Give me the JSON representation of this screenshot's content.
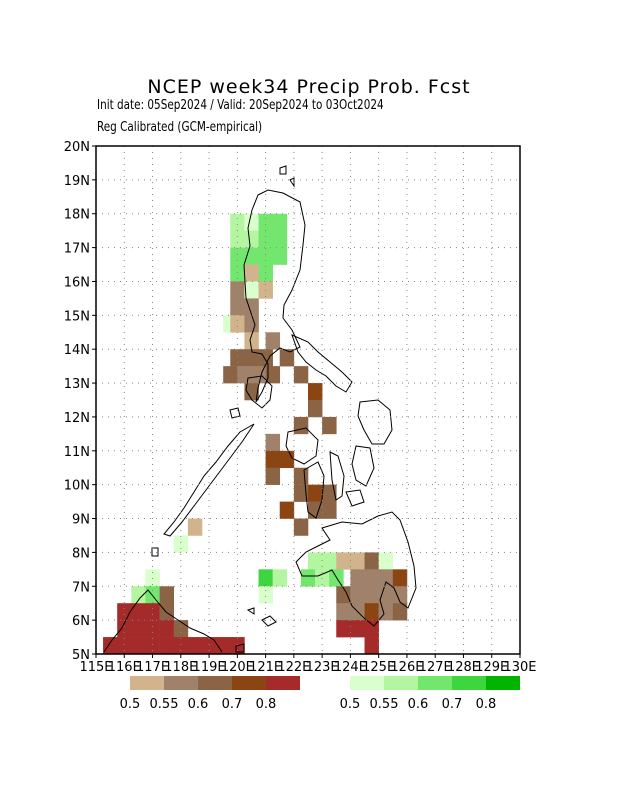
{
  "title": "NCEP week34 Precip Prob. Fcst",
  "subtitle1": "Init date: 05Sep2024 / Valid: 20Sep2024 to 03Oct2024",
  "subtitle2": "Reg Calibrated (GCM-empirical)",
  "axes": {
    "lon_ticks": [
      "115E",
      "116E",
      "117E",
      "118E",
      "119E",
      "120E",
      "121E",
      "122E",
      "123E",
      "124E",
      "125E",
      "126E",
      "127E",
      "128E",
      "129E",
      "130E"
    ],
    "lat_ticks": [
      "5N",
      "6N",
      "7N",
      "8N",
      "9N",
      "10N",
      "11N",
      "12N",
      "13N",
      "14N",
      "15N",
      "16N",
      "17N",
      "18N",
      "19N",
      "20N"
    ],
    "xlim": [
      115,
      130
    ],
    "ylim": [
      5,
      20
    ],
    "grid": true
  },
  "legend_dry": {
    "labels": [
      "0.5",
      "0.55",
      "0.6",
      "0.7",
      "0.8"
    ],
    "colors": [
      "#d2b48c",
      "#a0826a",
      "#8b6446",
      "#8b4513",
      "#a52a2a"
    ]
  },
  "legend_wet": {
    "labels": [
      "0.5",
      "0.55",
      "0.6",
      "0.7",
      "0.8"
    ],
    "colors": [
      "#d9ffcc",
      "#b3f5a0",
      "#73e66e",
      "#3ed63e",
      "#00b400"
    ]
  },
  "chart_data": {
    "type": "heatmap",
    "cell_size_deg": 0.5,
    "categories": {
      "d1": "dry 0.5",
      "d2": "dry 0.55",
      "d3": "dry 0.6",
      "d4": "dry 0.7",
      "d5": "dry 0.8",
      "w1": "wet 0.5",
      "w2": "wet 0.55",
      "w3": "wet 0.6",
      "w4": "wet 0.7",
      "w5": "wet 0.8"
    },
    "cells": [
      [
        120.0,
        17.75,
        "w2"
      ],
      [
        120.5,
        17.75,
        "w1"
      ],
      [
        121.0,
        17.75,
        "w3"
      ],
      [
        121.5,
        17.75,
        "w3"
      ],
      [
        120.0,
        17.25,
        "w2"
      ],
      [
        120.5,
        17.25,
        "w2"
      ],
      [
        121.0,
        17.25,
        "w3"
      ],
      [
        121.5,
        17.25,
        "w3"
      ],
      [
        120.0,
        16.75,
        "w3"
      ],
      [
        120.5,
        16.75,
        "w3"
      ],
      [
        121.0,
        16.75,
        "w3"
      ],
      [
        121.5,
        16.75,
        "w3"
      ],
      [
        120.0,
        16.25,
        "w3"
      ],
      [
        120.5,
        16.25,
        "d1"
      ],
      [
        121.0,
        16.25,
        "w3"
      ],
      [
        120.0,
        15.75,
        "d2"
      ],
      [
        120.5,
        15.75,
        "w1"
      ],
      [
        121.0,
        15.75,
        "d1"
      ],
      [
        120.0,
        15.25,
        "d2"
      ],
      [
        120.5,
        15.25,
        "d2"
      ],
      [
        119.75,
        14.75,
        "w1"
      ],
      [
        120.0,
        14.75,
        "d1"
      ],
      [
        120.5,
        14.75,
        "d2"
      ],
      [
        120.5,
        14.25,
        "d1"
      ],
      [
        121.25,
        14.25,
        "d2"
      ],
      [
        120.0,
        13.75,
        "d3"
      ],
      [
        120.5,
        13.75,
        "d3"
      ],
      [
        121.0,
        13.75,
        "d3"
      ],
      [
        121.75,
        13.75,
        "d3"
      ],
      [
        119.75,
        13.25,
        "d3"
      ],
      [
        120.25,
        13.25,
        "d2"
      ],
      [
        120.75,
        13.25,
        "d2"
      ],
      [
        121.25,
        13.25,
        "d3"
      ],
      [
        122.25,
        13.25,
        "d3"
      ],
      [
        120.5,
        12.75,
        "d3"
      ],
      [
        122.75,
        12.75,
        "d4"
      ],
      [
        122.75,
        12.25,
        "d3"
      ],
      [
        122.25,
        11.75,
        "d3"
      ],
      [
        123.25,
        11.75,
        "d3"
      ],
      [
        121.25,
        11.25,
        "d2"
      ],
      [
        121.25,
        10.75,
        "d4"
      ],
      [
        121.75,
        10.75,
        "d4"
      ],
      [
        121.25,
        10.25,
        "d3"
      ],
      [
        122.25,
        10.25,
        "d3"
      ],
      [
        122.25,
        9.75,
        "d3"
      ],
      [
        122.75,
        9.75,
        "d4"
      ],
      [
        123.25,
        9.75,
        "d3"
      ],
      [
        121.75,
        9.25,
        "d4"
      ],
      [
        122.75,
        9.25,
        "d3"
      ],
      [
        123.25,
        9.25,
        "d3"
      ],
      [
        122.25,
        8.75,
        "d3"
      ],
      [
        118.5,
        8.75,
        "d1"
      ],
      [
        118.0,
        8.25,
        "w1"
      ],
      [
        122.75,
        7.75,
        "w2"
      ],
      [
        123.25,
        7.75,
        "w2"
      ],
      [
        123.75,
        7.75,
        "d1"
      ],
      [
        124.25,
        7.75,
        "d1"
      ],
      [
        124.75,
        7.75,
        "d3"
      ],
      [
        125.25,
        7.75,
        "w1"
      ],
      [
        121.0,
        7.25,
        "w4"
      ],
      [
        121.5,
        7.25,
        "w2"
      ],
      [
        122.5,
        7.25,
        "w3"
      ],
      [
        123.0,
        7.25,
        "w2"
      ],
      [
        123.5,
        7.25,
        "w3"
      ],
      [
        124.25,
        7.25,
        "d2"
      ],
      [
        124.75,
        7.25,
        "d2"
      ],
      [
        125.25,
        7.25,
        "d2"
      ],
      [
        125.75,
        7.25,
        "d4"
      ],
      [
        121.0,
        6.75,
        "w1"
      ],
      [
        123.75,
        6.75,
        "d3"
      ],
      [
        124.25,
        6.75,
        "d2"
      ],
      [
        124.75,
        6.75,
        "d2"
      ],
      [
        125.25,
        6.75,
        "d2"
      ],
      [
        125.75,
        6.75,
        "d2"
      ],
      [
        123.75,
        6.25,
        "d2"
      ],
      [
        124.25,
        6.25,
        "d2"
      ],
      [
        124.75,
        6.25,
        "d4"
      ],
      [
        125.25,
        6.25,
        "d2"
      ],
      [
        125.75,
        6.25,
        "d3"
      ],
      [
        123.75,
        5.75,
        "d5"
      ],
      [
        124.25,
        5.75,
        "d5"
      ],
      [
        124.75,
        5.75,
        "d5"
      ],
      [
        124.75,
        5.25,
        "d5"
      ],
      [
        117.0,
        7.25,
        "w1"
      ],
      [
        116.5,
        6.75,
        "w2"
      ],
      [
        117.0,
        6.75,
        "w3"
      ],
      [
        117.5,
        6.75,
        "d3"
      ],
      [
        116.0,
        6.25,
        "d5"
      ],
      [
        116.5,
        6.25,
        "d5"
      ],
      [
        117.0,
        6.25,
        "d5"
      ],
      [
        117.5,
        6.25,
        "d3"
      ],
      [
        116.0,
        5.75,
        "d5"
      ],
      [
        116.5,
        5.75,
        "d5"
      ],
      [
        117.0,
        5.75,
        "d5"
      ],
      [
        117.5,
        5.75,
        "d5"
      ],
      [
        118.0,
        5.75,
        "d3"
      ],
      [
        115.5,
        5.25,
        "d5"
      ],
      [
        116.0,
        5.25,
        "d5"
      ],
      [
        116.5,
        5.25,
        "d5"
      ],
      [
        117.0,
        5.25,
        "d5"
      ],
      [
        117.5,
        5.25,
        "d5"
      ],
      [
        118.0,
        5.25,
        "d5"
      ],
      [
        118.5,
        5.25,
        "d5"
      ],
      [
        119.0,
        5.25,
        "d5"
      ],
      [
        119.5,
        5.25,
        "d5"
      ],
      [
        120.0,
        5.25,
        "d5"
      ]
    ]
  }
}
